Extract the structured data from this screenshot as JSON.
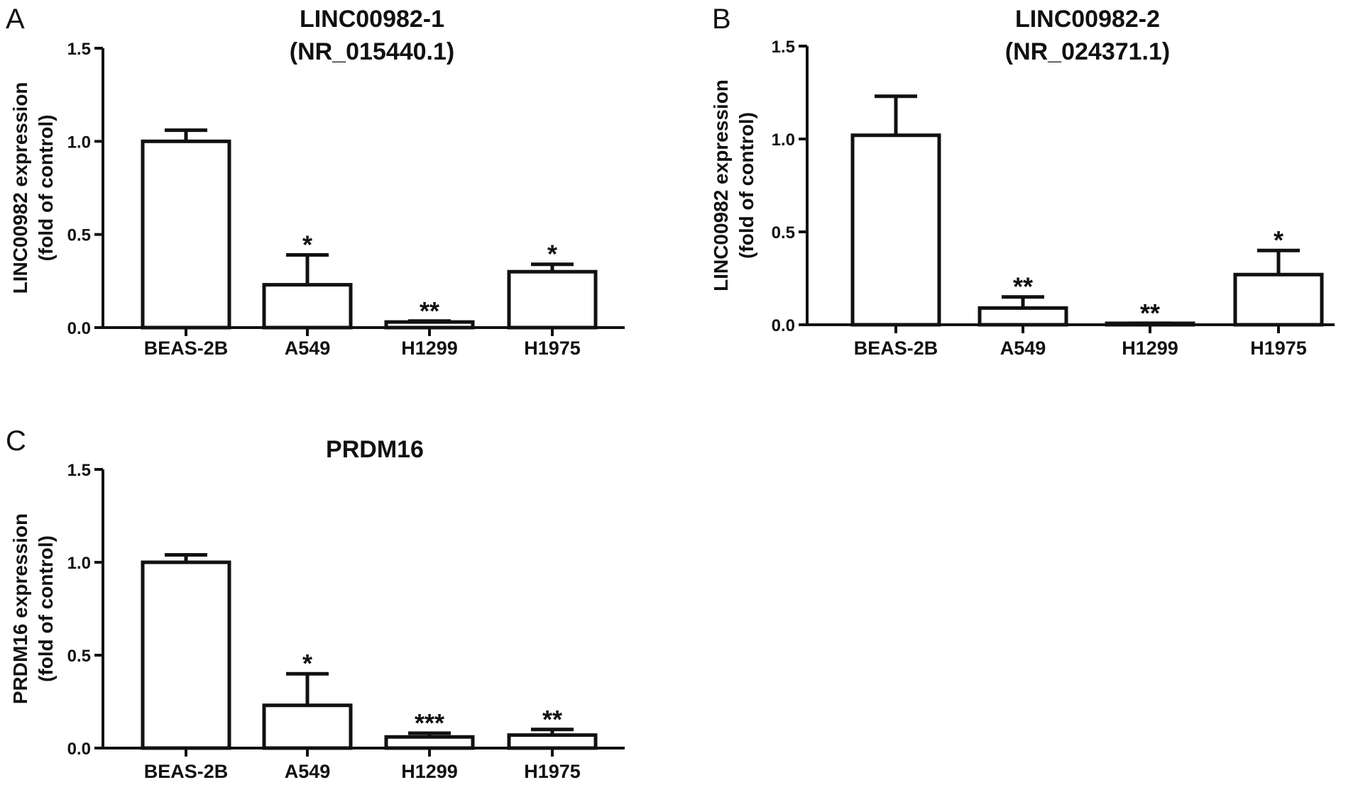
{
  "chart_data": [
    {
      "panel": "A",
      "type": "bar",
      "title": [
        "LINC00982-1",
        "(NR_015440.1)"
      ],
      "ylabel": [
        "LINC00982 expression",
        "(fold of control)"
      ],
      "xlabel": "",
      "categories": [
        "BEAS-2B",
        "A549",
        "H1299",
        "H1975"
      ],
      "values": [
        1.0,
        0.23,
        0.03,
        0.3
      ],
      "errors": [
        0.06,
        0.16,
        0.005,
        0.04
      ],
      "significance": [
        "",
        "*",
        "**",
        "*"
      ],
      "ylim": [
        0,
        1.5
      ],
      "yticks": [
        "0.0",
        "0.5",
        "1.0",
        "1.5"
      ],
      "grid": false,
      "legend": "none"
    },
    {
      "panel": "B",
      "type": "bar",
      "title": [
        "LINC00982-2",
        "(NR_024371.1)"
      ],
      "ylabel": [
        "LINC00982 expression",
        "(fold of control)"
      ],
      "xlabel": "",
      "categories": [
        "BEAS-2B",
        "A549",
        "H1299",
        "H1975"
      ],
      "values": [
        1.02,
        0.09,
        0.005,
        0.27
      ],
      "errors": [
        0.21,
        0.06,
        0.003,
        0.13
      ],
      "significance": [
        "",
        "**",
        "**",
        "*"
      ],
      "ylim": [
        0,
        1.5
      ],
      "yticks": [
        "0.0",
        "0.5",
        "1.0",
        "1.5"
      ],
      "grid": false,
      "legend": "none"
    },
    {
      "panel": "C",
      "type": "bar",
      "title": [
        "PRDM16"
      ],
      "ylabel": [
        "PRDM16 expression",
        "(fold of control)"
      ],
      "xlabel": "",
      "categories": [
        "BEAS-2B",
        "A549",
        "H1299",
        "H1975"
      ],
      "values": [
        1.0,
        0.23,
        0.06,
        0.07
      ],
      "errors": [
        0.04,
        0.17,
        0.02,
        0.03
      ],
      "significance": [
        "",
        "*",
        "***",
        "**"
      ],
      "ylim": [
        0,
        1.5
      ],
      "yticks": [
        "0.0",
        "0.5",
        "1.0",
        "1.5"
      ],
      "grid": false,
      "legend": "none"
    }
  ]
}
